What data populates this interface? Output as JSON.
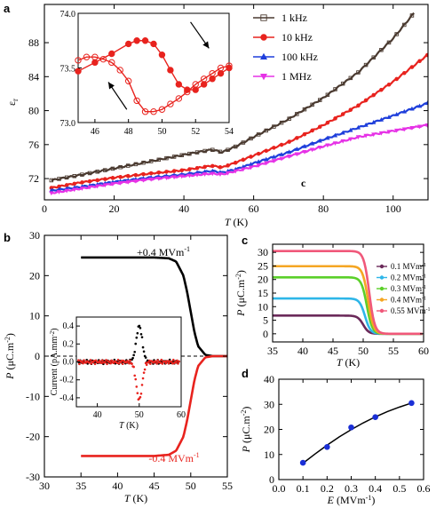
{
  "chart_data": [
    {
      "id": "a",
      "type": "line",
      "panel_label": "a",
      "xlabel": "T (K)",
      "ylabel": "εr",
      "xlim": [
        0,
        110
      ],
      "ylim": [
        69.5,
        92.5
      ],
      "xticks": [
        0,
        20,
        40,
        60,
        80,
        100
      ],
      "yticks": [
        72,
        76,
        80,
        84,
        88
      ],
      "legend_position": "top-right",
      "series": [
        {
          "name": "1 kHz",
          "color": "#4a3a30",
          "marker": "square",
          "x": [
            2,
            10,
            20,
            30,
            40,
            48,
            51,
            55,
            60,
            70,
            80,
            90,
            100,
            106
          ],
          "y": [
            71.8,
            72.4,
            73.2,
            74.0,
            74.8,
            75.4,
            75.1,
            75.8,
            76.9,
            79.0,
            81.5,
            84.5,
            88.5,
            91.5
          ]
        },
        {
          "name": "10 kHz",
          "color": "#e8231e",
          "marker": "circle",
          "x": [
            2,
            10,
            20,
            30,
            40,
            48,
            51,
            55,
            60,
            70,
            80,
            90,
            100,
            110
          ],
          "y": [
            70.9,
            71.5,
            72.1,
            72.6,
            73.0,
            73.5,
            73.3,
            73.9,
            74.7,
            76.3,
            78.3,
            80.6,
            83.4,
            86.6
          ]
        },
        {
          "name": "100 kHz",
          "color": "#1f3fdb",
          "marker": "triangle",
          "x": [
            2,
            10,
            20,
            30,
            40,
            48,
            51,
            55,
            60,
            70,
            80,
            90,
            100,
            110
          ],
          "y": [
            70.6,
            71.0,
            71.6,
            72.1,
            72.5,
            72.9,
            72.7,
            73.1,
            73.8,
            75.1,
            76.6,
            78.0,
            79.4,
            80.9
          ]
        },
        {
          "name": "1 MHz",
          "color": "#e632e6",
          "marker": "triangle-down",
          "x": [
            2,
            10,
            20,
            30,
            40,
            48,
            51,
            55,
            60,
            70,
            80,
            90,
            100,
            110
          ],
          "y": [
            70.3,
            70.8,
            71.4,
            71.9,
            72.3,
            72.6,
            72.5,
            72.9,
            73.4,
            74.6,
            75.8,
            76.9,
            77.6,
            78.3
          ]
        }
      ],
      "annotation": "c",
      "inset": {
        "xlim": [
          45,
          54
        ],
        "ylim": [
          73.0,
          74.0
        ],
        "xticks": [
          46,
          48,
          50,
          52,
          54
        ],
        "yticks": [
          73.0,
          73.5,
          74.0
        ],
        "series": [
          {
            "name": "heating",
            "color": "#e8231e",
            "filled": true,
            "x": [
              45,
              46,
              47,
              48,
              48.5,
              49,
              49.5,
              50,
              50.5,
              51,
              51.5,
              52,
              52.5,
              53,
              53.5,
              54
            ],
            "y": [
              73.47,
              73.55,
              73.63,
              73.72,
              73.75,
              73.75,
              73.72,
              73.62,
              73.48,
              73.35,
              73.3,
              73.3,
              73.35,
              73.4,
              73.45,
              73.5
            ]
          },
          {
            "name": "cooling",
            "color": "#e8231e",
            "filled": false,
            "x": [
              45,
              45.5,
              46,
              46.5,
              47,
              47.5,
              48,
              48.5,
              49,
              49.5,
              50,
              50.5,
              51,
              51.5,
              52,
              52.5,
              53,
              53.5,
              54
            ],
            "y": [
              73.57,
              73.6,
              73.6,
              73.58,
              73.55,
              73.48,
              73.38,
              73.2,
              73.1,
              73.1,
              73.12,
              73.17,
              73.22,
              73.28,
              73.35,
              73.4,
              73.45,
              73.5,
              73.52
            ]
          }
        ]
      }
    },
    {
      "id": "b",
      "type": "line",
      "panel_label": "b",
      "xlabel": "T (K)",
      "ylabel": "P (μC.m⁻²)",
      "xlim": [
        30,
        55
      ],
      "ylim": [
        -30,
        30
      ],
      "xticks": [
        30,
        35,
        40,
        45,
        50,
        55
      ],
      "yticks": [
        -30,
        -20,
        -10,
        0,
        10,
        20,
        30
      ],
      "series": [
        {
          "name": "+0.4 MVm⁻¹",
          "color": "#000000",
          "x": [
            35,
            40,
            45,
            47,
            48,
            49,
            49.5,
            50,
            50.5,
            51,
            52,
            53,
            55
          ],
          "y": [
            24.5,
            24.5,
            24.5,
            24.3,
            23.5,
            20,
            16,
            11,
            6,
            2.5,
            0.3,
            0,
            0
          ]
        },
        {
          "name": "-0.4 MVm⁻¹",
          "color": "#e8231e",
          "x": [
            35,
            40,
            45,
            47,
            48,
            49,
            49.5,
            50,
            50.5,
            51,
            52,
            53,
            55
          ],
          "y": [
            -24.8,
            -24.8,
            -24.8,
            -24.5,
            -23.5,
            -20,
            -16,
            -11,
            -6,
            -2.5,
            -0.3,
            0,
            0
          ]
        }
      ],
      "labels": {
        "pos": "+0.4 MVm⁻¹",
        "neg": "-0.4 MVm⁻¹"
      },
      "inset": {
        "xlabel": "T (K)",
        "ylabel": "Current (pA.mm⁻²)",
        "xlim": [
          35,
          60
        ],
        "ylim": [
          -0.5,
          0.5
        ],
        "xticks": [
          40,
          50,
          60
        ],
        "yticks": [
          -0.4,
          -0.2,
          0.0,
          0.2,
          0.4
        ],
        "series": [
          {
            "name": "pos",
            "color": "#000000",
            "center": 50,
            "width": 1.0,
            "peak": 0.4
          },
          {
            "name": "neg",
            "color": "#e8231e",
            "center": 50,
            "width": 1.0,
            "peak": -0.42
          }
        ]
      }
    },
    {
      "id": "c",
      "type": "line",
      "panel_label": "c",
      "xlabel": "T (K)",
      "ylabel": "P (μC.m⁻²)",
      "xlim": [
        35,
        60
      ],
      "ylim": [
        -3,
        33
      ],
      "xticks": [
        35,
        40,
        45,
        50,
        55,
        60
      ],
      "yticks": [
        0,
        5,
        10,
        15,
        20,
        25,
        30
      ],
      "legend_position": "right",
      "series": [
        {
          "name": "0.1 MVm⁻¹",
          "color": "#6b2a5a",
          "plateau": 6.7,
          "tc": 50.0
        },
        {
          "name": "0.2 MVm⁻¹",
          "color": "#2eb6e8",
          "plateau": 13.0,
          "tc": 50.3
        },
        {
          "name": "0.3 MVm⁻¹",
          "color": "#5bd02a",
          "plateau": 20.8,
          "tc": 50.6
        },
        {
          "name": "0.4 MVm⁻¹",
          "color": "#f5a623",
          "plateau": 24.9,
          "tc": 50.8
        },
        {
          "name": "0.55 MVm⁻¹",
          "color": "#f0587a",
          "plateau": 30.5,
          "tc": 51.0
        }
      ]
    },
    {
      "id": "d",
      "type": "scatter",
      "panel_label": "d",
      "xlabel": "E (MVm⁻¹)",
      "ylabel": "P (μC.m⁻²)",
      "xlim": [
        0.0,
        0.6
      ],
      "ylim": [
        0,
        40
      ],
      "xticks": [
        0.0,
        0.1,
        0.2,
        0.3,
        0.4,
        0.5,
        0.6
      ],
      "yticks": [
        0,
        10,
        20,
        30,
        40
      ],
      "points": {
        "x": [
          0.1,
          0.2,
          0.3,
          0.4,
          0.55
        ],
        "y": [
          6.7,
          13.0,
          20.8,
          24.9,
          30.5
        ],
        "color": "#1a2fd6"
      },
      "fit": {
        "x": [
          0.1,
          0.15,
          0.2,
          0.25,
          0.3,
          0.35,
          0.4,
          0.45,
          0.5,
          0.55
        ],
        "y": [
          6.5,
          10.2,
          13.7,
          17.0,
          19.9,
          22.6,
          25.0,
          27.1,
          28.9,
          30.5
        ],
        "color": "#000000"
      }
    }
  ]
}
